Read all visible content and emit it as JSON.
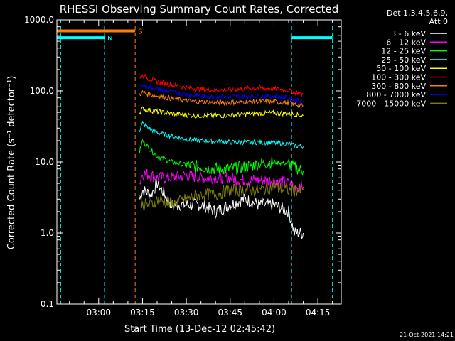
{
  "chart_data": {
    "type": "line",
    "title": "RHESSI Observing Summary Count Rates, Corrected",
    "xlabel": "Start Time (13-Dec-12 02:45:42)",
    "ylabel": "Corrected Count Rate (s⁻¹ detector⁻¹)",
    "y_scale": "log",
    "ylim": [
      0.1,
      1000
    ],
    "xlim": [
      "02:45:42",
      "04:23:00"
    ],
    "y_ticks": [
      "0.1",
      "1.0",
      "10.0",
      "100.0",
      "1000.0"
    ],
    "x_ticks": [
      "03:00",
      "03:15",
      "03:30",
      "03:45",
      "04:00",
      "04:15"
    ],
    "legend_header": [
      "Det 1,3,4,5,6,9,",
      "Att 0"
    ],
    "legend_position": "right",
    "timestamp": "21-Oct-2021 14:21",
    "night_bars": [
      {
        "start": "02:45:42",
        "end": "03:02:00",
        "value": 560,
        "label": "N"
      },
      {
        "start": "04:06:00",
        "end": "04:20:00",
        "value": 560,
        "label": ""
      }
    ],
    "saa_bars": [
      {
        "start": "02:45:42",
        "end": "03:12:30",
        "value": 700,
        "label": "S"
      }
    ],
    "night_lines": [
      "02:47:00",
      "03:02:00",
      "04:06:00",
      "04:20:00"
    ],
    "saa_lines": [
      "03:12:30"
    ],
    "series": [
      {
        "name": "3 - 6 keV",
        "color": "#ffffff",
        "x": [
          "03:14",
          "03:15",
          "03:18",
          "03:20",
          "03:25",
          "03:30",
          "03:35",
          "03:40",
          "03:45",
          "03:50",
          "03:55",
          "04:00",
          "04:05",
          "04:07",
          "04:10"
        ],
        "values": [
          3.0,
          4.0,
          3.5,
          5.0,
          2.5,
          2.5,
          2.5,
          2.0,
          2.5,
          3.0,
          2.5,
          2.5,
          2.0,
          1.0,
          1.0
        ]
      },
      {
        "name": "6 - 12 keV",
        "color": "#ff00ff",
        "x": [
          "03:14",
          "03:15",
          "03:18",
          "03:20",
          "03:25",
          "03:30",
          "03:35",
          "03:40",
          "03:45",
          "03:50",
          "03:55",
          "04:00",
          "04:05",
          "04:07",
          "04:10"
        ],
        "values": [
          5.0,
          7.0,
          6.5,
          6.0,
          6.0,
          6.5,
          6.0,
          6.0,
          6.0,
          5.5,
          5.5,
          5.5,
          5.0,
          4.5,
          4.5
        ]
      },
      {
        "name": "12 - 25 keV",
        "color": "#00ff00",
        "x": [
          "03:14",
          "03:15",
          "03:17",
          "03:20",
          "03:25",
          "03:30",
          "03:35",
          "03:40",
          "03:45",
          "03:50",
          "03:55",
          "04:00",
          "04:05",
          "04:07",
          "04:10"
        ],
        "values": [
          14.0,
          20.0,
          16.0,
          12.0,
          10.0,
          9.0,
          8.5,
          8.0,
          8.0,
          8.5,
          9.5,
          10.0,
          9.5,
          8.5,
          7.5
        ]
      },
      {
        "name": "25 - 50 keV",
        "color": "#00ffff",
        "x": [
          "03:14",
          "03:15",
          "03:17",
          "03:20",
          "03:25",
          "03:30",
          "03:35",
          "03:40",
          "03:45",
          "03:50",
          "03:55",
          "04:00",
          "04:05",
          "04:07",
          "04:10"
        ],
        "values": [
          28.0,
          35.0,
          30.0,
          26.0,
          23.0,
          21.0,
          20.0,
          19.5,
          19.0,
          19.0,
          19.0,
          18.5,
          18.0,
          17.0,
          16.5
        ]
      },
      {
        "name": "50 - 100 keV",
        "color": "#ffff00",
        "x": [
          "03:14",
          "03:15",
          "03:17",
          "03:20",
          "03:25",
          "03:30",
          "03:35",
          "03:40",
          "03:45",
          "03:50",
          "03:55",
          "04:00",
          "04:05",
          "04:07",
          "04:10"
        ],
        "values": [
          50.0,
          56.0,
          54.0,
          51.0,
          48.0,
          46.0,
          45.0,
          45.0,
          45.5,
          47.0,
          48.0,
          49.0,
          48.0,
          47.0,
          45.0
        ]
      },
      {
        "name": "100 - 300 keV",
        "color": "#ff0000",
        "x": [
          "03:14",
          "03:15",
          "03:17",
          "03:20",
          "03:25",
          "03:30",
          "03:35",
          "03:40",
          "03:45",
          "03:50",
          "03:55",
          "04:00",
          "04:05",
          "04:07",
          "04:10"
        ],
        "values": [
          150.0,
          165.0,
          150.0,
          135.0,
          122.0,
          112.0,
          105.0,
          103.0,
          104.0,
          108.0,
          110.0,
          108.0,
          102.0,
          96.0,
          90.0
        ]
      },
      {
        "name": "300 - 800 keV",
        "color": "#ff8000",
        "x": [
          "03:14",
          "03:15",
          "03:17",
          "03:20",
          "03:25",
          "03:30",
          "03:35",
          "03:40",
          "03:45",
          "03:50",
          "03:55",
          "04:00",
          "04:05",
          "04:07",
          "04:10"
        ],
        "values": [
          90.0,
          95.0,
          90.0,
          85.0,
          78.0,
          73.0,
          70.0,
          69.0,
          69.0,
          70.0,
          71.0,
          70.0,
          68.0,
          65.0,
          62.0
        ]
      },
      {
        "name": "800 - 7000 keV",
        "color": "#0000ff",
        "x": [
          "03:14",
          "03:15",
          "03:17",
          "03:20",
          "03:25",
          "03:30",
          "03:35",
          "03:40",
          "03:45",
          "03:50",
          "03:55",
          "04:00",
          "04:05",
          "04:07",
          "04:10"
        ],
        "values": [
          115.0,
          125.0,
          115.0,
          106.0,
          97.0,
          89.0,
          84.0,
          82.0,
          82.0,
          84.0,
          85.0,
          84.0,
          80.0,
          76.0,
          72.0
        ]
      },
      {
        "name": "7000 - 15000 keV",
        "color": "#808000",
        "x": [
          "03:14",
          "03:15",
          "03:18",
          "03:20",
          "03:25",
          "03:30",
          "03:35",
          "03:40",
          "03:45",
          "03:50",
          "03:55",
          "04:00",
          "04:05",
          "04:07",
          "04:10"
        ],
        "values": [
          3.5,
          2.5,
          2.5,
          3.0,
          2.5,
          3.0,
          3.5,
          3.5,
          4.0,
          4.0,
          4.0,
          4.5,
          4.0,
          4.0,
          4.0
        ]
      }
    ]
  }
}
